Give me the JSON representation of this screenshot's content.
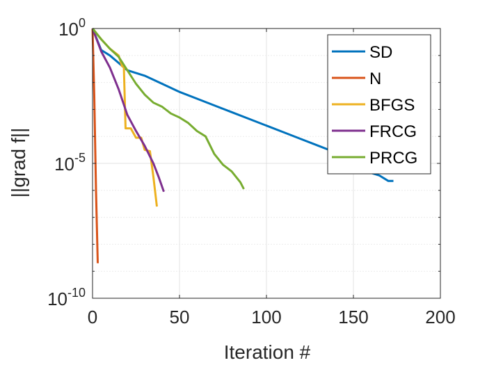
{
  "chart_data": {
    "type": "line",
    "xlabel": "Iteration #",
    "ylabel": "||grad f||",
    "xlim": [
      0,
      200
    ],
    "ylim_log10": [
      -10,
      0
    ],
    "yscale": "log",
    "grid": true,
    "legend_placement": "top-right",
    "x_ticks": [
      "0",
      "50",
      "100",
      "150",
      "200"
    ],
    "y_ticks": [
      {
        "base": "10",
        "exp": "0",
        "value_log10": 0
      },
      {
        "base": "10",
        "exp": "-5",
        "value_log10": -5
      },
      {
        "base": "10",
        "exp": "-10",
        "value_log10": -10
      }
    ],
    "series": [
      {
        "name": "SD",
        "color": "#0072BD",
        "points": [
          [
            0,
            0
          ],
          [
            5,
            -0.8
          ],
          [
            10,
            -1.0
          ],
          [
            20,
            -1.55
          ],
          [
            30,
            -1.75
          ],
          [
            40,
            -2.05
          ],
          [
            50,
            -2.35
          ],
          [
            60,
            -2.6
          ],
          [
            70,
            -2.85
          ],
          [
            80,
            -3.1
          ],
          [
            90,
            -3.35
          ],
          [
            100,
            -3.6
          ],
          [
            110,
            -3.85
          ],
          [
            120,
            -4.1
          ],
          [
            130,
            -4.35
          ],
          [
            140,
            -4.6
          ],
          [
            150,
            -4.85
          ],
          [
            160,
            -5.35
          ],
          [
            165,
            -5.45
          ],
          [
            170,
            -5.65
          ],
          [
            173,
            -5.65
          ]
        ]
      },
      {
        "name": "N",
        "color": "#D95319",
        "points": [
          [
            0,
            0
          ],
          [
            1,
            -2.5
          ],
          [
            2,
            -6.0
          ],
          [
            3,
            -8.7
          ]
        ]
      },
      {
        "name": "BFGS",
        "color": "#EDB120",
        "points": [
          [
            0,
            0
          ],
          [
            5,
            -0.4
          ],
          [
            10,
            -0.75
          ],
          [
            15,
            -1.0
          ],
          [
            17,
            -1.4
          ],
          [
            18,
            -1.4
          ],
          [
            19,
            -3.7
          ],
          [
            20,
            -3.7
          ],
          [
            22,
            -3.7
          ],
          [
            25,
            -4.05
          ],
          [
            28,
            -4.05
          ],
          [
            30,
            -4.5
          ],
          [
            33,
            -4.55
          ],
          [
            35,
            -5.5
          ],
          [
            37,
            -6.6
          ]
        ]
      },
      {
        "name": "FRCG",
        "color": "#7E2F8E",
        "points": [
          [
            0,
            0
          ],
          [
            5,
            -0.85
          ],
          [
            10,
            -1.45
          ],
          [
            15,
            -2.25
          ],
          [
            20,
            -3.2
          ],
          [
            25,
            -3.8
          ],
          [
            30,
            -4.35
          ],
          [
            35,
            -5.0
          ],
          [
            38,
            -5.5
          ],
          [
            41,
            -6.05
          ]
        ]
      },
      {
        "name": "PRCG",
        "color": "#77AC30",
        "points": [
          [
            0,
            0
          ],
          [
            5,
            -0.4
          ],
          [
            10,
            -0.75
          ],
          [
            15,
            -1.05
          ],
          [
            20,
            -1.55
          ],
          [
            25,
            -2.05
          ],
          [
            30,
            -2.45
          ],
          [
            35,
            -2.75
          ],
          [
            40,
            -2.9
          ],
          [
            45,
            -3.15
          ],
          [
            50,
            -3.3
          ],
          [
            55,
            -3.5
          ],
          [
            60,
            -3.8
          ],
          [
            65,
            -4.0
          ],
          [
            70,
            -4.65
          ],
          [
            75,
            -5.05
          ],
          [
            80,
            -5.3
          ],
          [
            85,
            -5.7
          ],
          [
            87,
            -5.95
          ]
        ]
      }
    ]
  }
}
